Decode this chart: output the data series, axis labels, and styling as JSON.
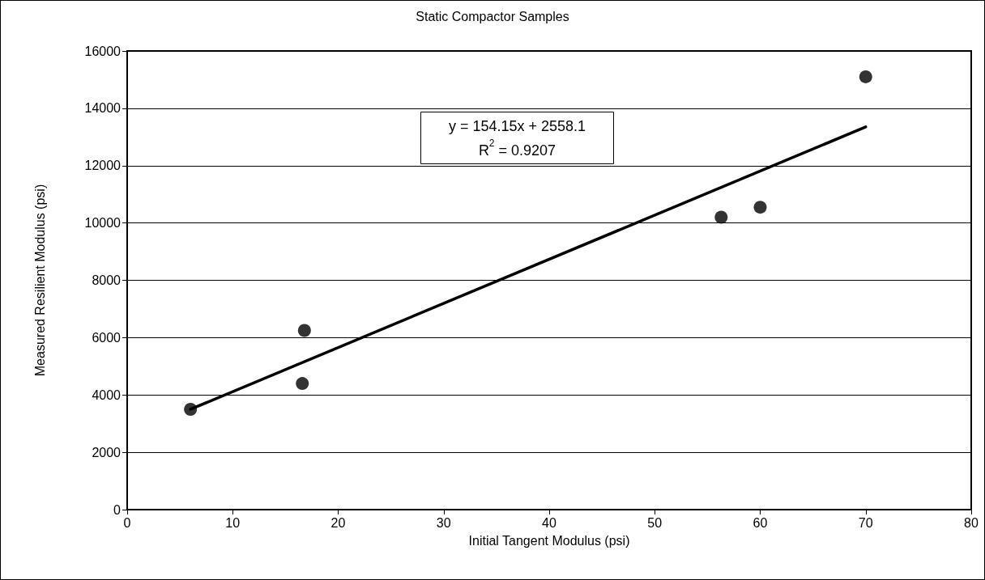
{
  "chart_data": {
    "type": "scatter",
    "title": "Static Compactor Samples",
    "xlabel": "Initial Tangent Modulus (psi)",
    "ylabel": "Measured Resilient Modulus (psi)",
    "series": [
      {
        "color": "#000000",
        "marker": "circle",
        "x": [
          6,
          16.8,
          16.6,
          56.3,
          60,
          70
        ],
        "values": [
          3500,
          6250,
          4400,
          10200,
          10550,
          15100
        ]
      },
      {
        "type": "line",
        "color": "#000000",
        "marker": "none",
        "line_style": "solid",
        "x": [
          6,
          70
        ],
        "values": [
          3500,
          13350
        ]
      }
    ],
    "annotations": [
      "y = 154.15x + 2558.1",
      "R$^{2}$ = 0.9207"
    ],
    "xlim": [
      0,
      80
    ],
    "xticks": [
      0,
      10,
      20,
      30,
      40,
      50,
      60,
      70,
      80
    ],
    "ylim": [
      0,
      16000
    ],
    "yticks": [
      0,
      2000,
      4000,
      6000,
      8000,
      10000,
      12000,
      14000,
      16000
    ],
    "grid": "y"
  }
}
